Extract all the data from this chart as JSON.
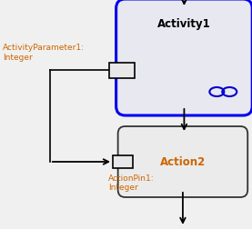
{
  "bg_color": "#f0f0f0",
  "activity1": {
    "label": "Activity1",
    "label_color": "#000000",
    "border_color": "#0000ee",
    "fill_color": "#e8e8f0",
    "lw": 2.2
  },
  "action2": {
    "label": "Action2",
    "label_color": "#cc6600",
    "border_color": "#333333",
    "fill_color": "#ebebeb",
    "lw": 1.3
  },
  "param_label": "ActivityParameter1:\nInteger",
  "pin_label": "ActionPin1:\nInteger",
  "label_color_orange": "#cc6600",
  "infinity_color": "#0000cc",
  "arrow_color": "#000000",
  "text_color": "#000000"
}
